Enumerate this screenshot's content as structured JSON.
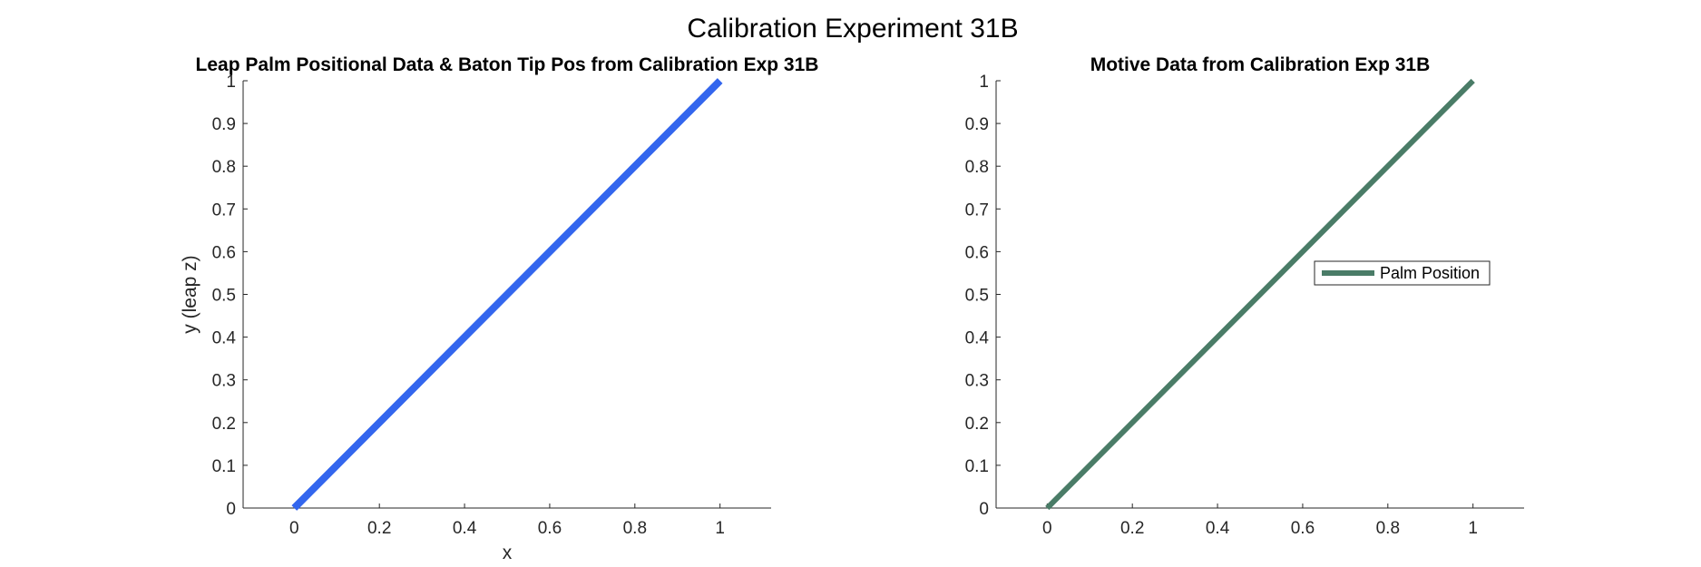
{
  "figure_title": "Calibration Experiment 31B",
  "chart_data": [
    {
      "type": "line",
      "title": "Leap Palm Positional Data & Baton Tip Pos from Calibration Exp 31B",
      "xlabel": "x",
      "ylabel": "y (leap z)",
      "xlim": [
        -0.12,
        1.12
      ],
      "ylim": [
        0,
        1
      ],
      "xticks": [
        0,
        0.2,
        0.4,
        0.6,
        0.8,
        1
      ],
      "xtick_labels": [
        "0",
        "0.2",
        "0.4",
        "0.6",
        "0.8",
        "1"
      ],
      "yticks": [
        0,
        0.1,
        0.2,
        0.3,
        0.4,
        0.5,
        0.6,
        0.7,
        0.8,
        0.9,
        1
      ],
      "ytick_labels": [
        "0",
        "0.1",
        "0.2",
        "0.3",
        "0.4",
        "0.5",
        "0.6",
        "0.7",
        "0.8",
        "0.9",
        "1"
      ],
      "grid": false,
      "legend": null,
      "series": [
        {
          "x": [
            0,
            1
          ],
          "y": [
            0,
            1
          ],
          "color": "#3366ee"
        }
      ]
    },
    {
      "type": "line",
      "title": "Motive Data from Calibration Exp 31B",
      "xlabel": "",
      "ylabel": "",
      "xlim": [
        -0.12,
        1.12
      ],
      "ylim": [
        0,
        1
      ],
      "xticks": [
        0,
        0.2,
        0.4,
        0.6,
        0.8,
        1
      ],
      "xtick_labels": [
        "0",
        "0.2",
        "0.4",
        "0.6",
        "0.8",
        "1"
      ],
      "yticks": [
        0,
        0.1,
        0.2,
        0.3,
        0.4,
        0.5,
        0.6,
        0.7,
        0.8,
        0.9,
        1
      ],
      "ytick_labels": [
        "0",
        "0.1",
        "0.2",
        "0.3",
        "0.4",
        "0.5",
        "0.6",
        "0.7",
        "0.8",
        "0.9",
        "1"
      ],
      "grid": false,
      "legend": "right",
      "series": [
        {
          "name": "Palm Position",
          "x": [
            0,
            1
          ],
          "y": [
            0,
            1
          ],
          "color": "#4a7c67"
        }
      ]
    }
  ]
}
